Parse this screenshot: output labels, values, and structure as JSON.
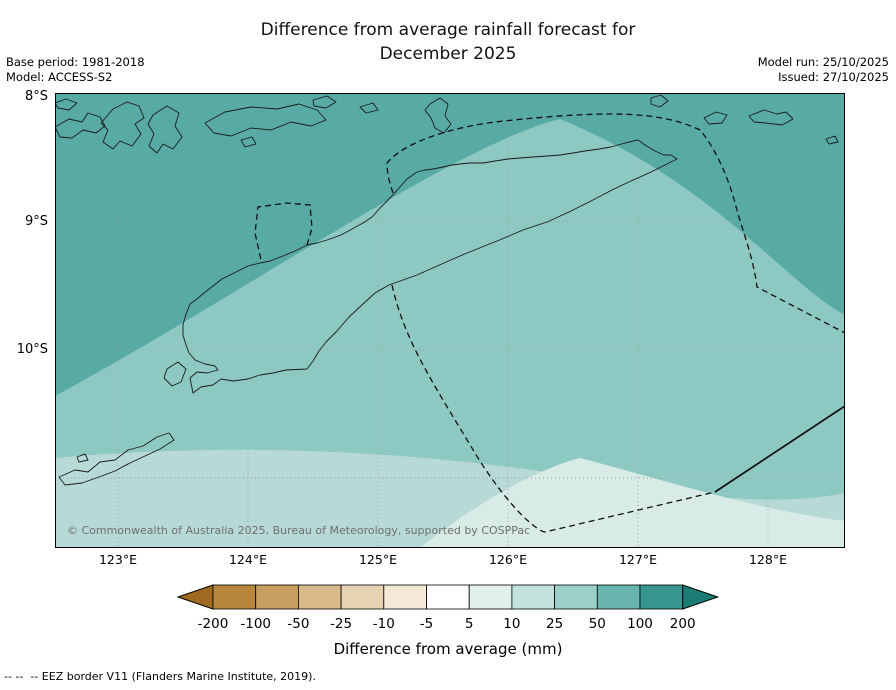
{
  "header": {
    "title_line1": "Difference from average rainfall forecast for",
    "title_line2": "December 2025",
    "base_period": "Base period: 1981-2018",
    "model": "Model: ACCESS-S2",
    "model_run": "Model run: 25/10/2025",
    "issued": "Issued: 27/10/2025"
  },
  "map": {
    "lat_ticks": [
      "8°S",
      "9°S",
      "10°S"
    ],
    "lon_ticks": [
      "123°E",
      "124°E",
      "125°E",
      "126°E",
      "127°E",
      "128°E"
    ],
    "copyright": "© Commonwealth of Australia 2025, Bureau of Meteorology, supported by COSPPac",
    "region_colors": {
      "anomaly_50_100": "#58aaa4",
      "anomaly_25_50": "#8dc8c2",
      "anomaly_10_25": "#b7dad6",
      "anomaly_5_10": "#d8ebe7"
    }
  },
  "legend": {
    "title": "Difference from average (mm)",
    "tick_labels": [
      "-200",
      "-100",
      "-50",
      "-25",
      "-10",
      "-5",
      "5",
      "10",
      "25",
      "50",
      "100",
      "200"
    ],
    "segment_colors": [
      "#b8873c",
      "#c89e60",
      "#d8ba8b",
      "#e7d4b4",
      "#f3e9d6",
      "#ffffff",
      "#e1f0ed",
      "#c3e2de",
      "#9bd0ca",
      "#68b4ae",
      "#37968f"
    ],
    "left_arrow_color": "#a06a21",
    "right_arrow_color": "#1b7c76"
  },
  "footnote": {
    "text": "-- --  -- EEZ border V11 (Flanders Marine Institute, 2019)."
  }
}
